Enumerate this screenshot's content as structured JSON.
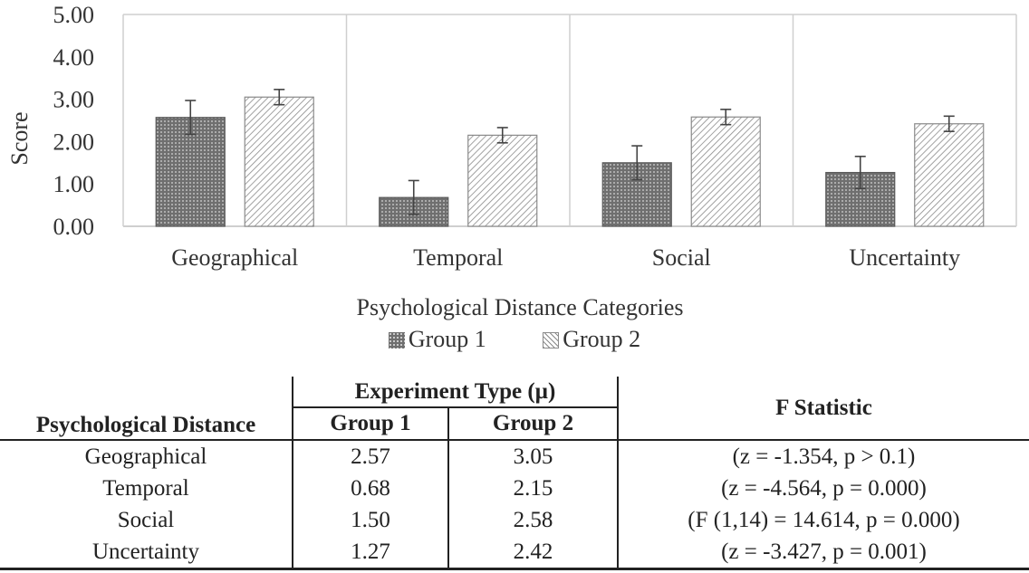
{
  "chart_data": {
    "type": "bar",
    "categories": [
      "Geographical",
      "Temporal",
      "Social",
      "Uncertainty"
    ],
    "series": [
      {
        "name": "Group 1",
        "values": [
          2.57,
          0.68,
          1.5,
          1.27
        ],
        "error": [
          0.4,
          0.4,
          0.4,
          0.38
        ]
      },
      {
        "name": "Group 2",
        "values": [
          3.05,
          2.15,
          2.58,
          2.42
        ],
        "error": [
          0.18,
          0.18,
          0.18,
          0.18
        ]
      }
    ],
    "xlabel": "Psychological Distance Categories",
    "ylabel": "Score",
    "ylim": [
      0,
      5
    ],
    "yticks": [
      "0.00",
      "1.00",
      "2.00",
      "3.00",
      "4.00",
      "5.00"
    ],
    "grid": "vertical category separators",
    "legend_position": "bottom",
    "colors": {
      "group1": "#707070",
      "group2_hatch": "#8a8a8a",
      "axis": "#bfbfbf",
      "text": "#333333"
    }
  },
  "table": {
    "row_header": "Psychological Distance",
    "group_header": "Experiment Type (µ)",
    "col_group1": "Group 1",
    "col_group2": "Group 2",
    "col_f": "F Statistic",
    "rows": [
      {
        "name": "Geographical",
        "g1": "2.57",
        "g2": "3.05",
        "f": "(z = -1.354, p > 0.1)"
      },
      {
        "name": "Temporal",
        "g1": "0.68",
        "g2": "2.15",
        "f": "(z = -4.564, p = 0.000)"
      },
      {
        "name": "Social",
        "g1": "1.50",
        "g2": "2.58",
        "f": "(F (1,14) = 14.614, p = 0.000)"
      },
      {
        "name": "Uncertainty",
        "g1": "1.27",
        "g2": "2.42",
        "f": "(z = -3.427, p = 0.001)"
      }
    ]
  }
}
